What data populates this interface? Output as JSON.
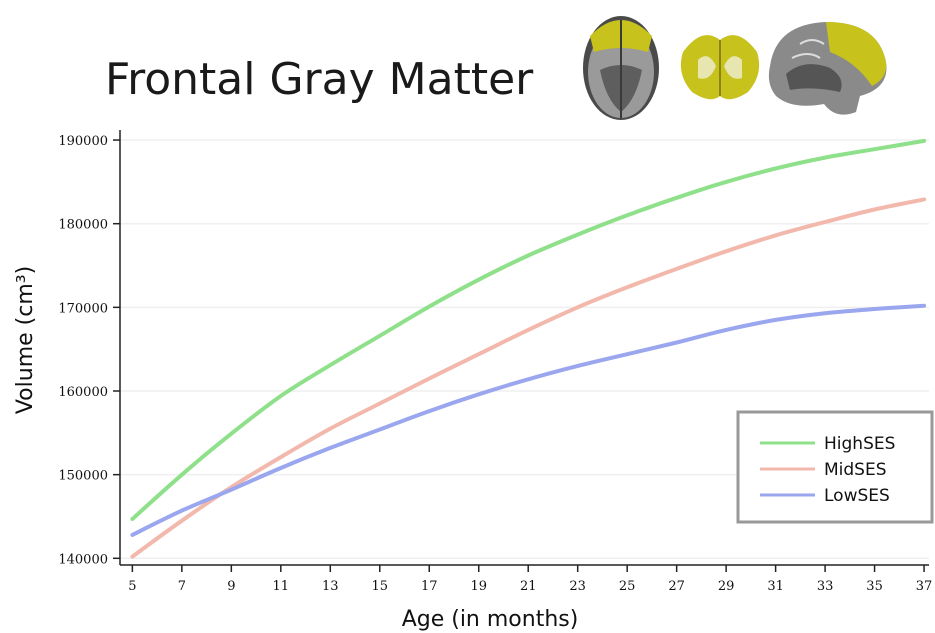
{
  "chart_data": {
    "type": "line",
    "title": "Frontal Gray Matter",
    "xlabel": "Age (in months)",
    "ylabel": "Volume (cm³)",
    "x_ticks": [
      5,
      7,
      9,
      11,
      13,
      15,
      17,
      19,
      21,
      23,
      25,
      27,
      29,
      31,
      33,
      35,
      37
    ],
    "y_ticks": [
      140000,
      150000,
      160000,
      170000,
      180000,
      190000
    ],
    "xlim": [
      4.5,
      37.2
    ],
    "ylim": [
      139200,
      191200
    ],
    "grid": "horizontal",
    "legend_position": "bottom-right",
    "series": [
      {
        "name": "HighSES",
        "color": "#8fe08a",
        "x": [
          5,
          7,
          9,
          11,
          13,
          15,
          17,
          19,
          21,
          23,
          25,
          27,
          29,
          31,
          33,
          35,
          37
        ],
        "y": [
          144700,
          150000,
          154900,
          159400,
          163100,
          166600,
          170100,
          173300,
          176200,
          178700,
          181000,
          183100,
          185000,
          186600,
          187900,
          188900,
          189900
        ]
      },
      {
        "name": "MidSES",
        "color": "#f2b8ac",
        "x": [
          5,
          7,
          9,
          11,
          13,
          15,
          17,
          19,
          21,
          23,
          25,
          27,
          29,
          31,
          33,
          35,
          37
        ],
        "y": [
          140200,
          144500,
          148500,
          152100,
          155500,
          158500,
          161500,
          164400,
          167300,
          170000,
          172400,
          174600,
          176700,
          178600,
          180200,
          181700,
          182900
        ]
      },
      {
        "name": "LowSES",
        "color": "#9aa6ee",
        "x": [
          5,
          7,
          9,
          11,
          13,
          15,
          17,
          19,
          21,
          23,
          25,
          27,
          29,
          31,
          33,
          35,
          37
        ],
        "y": [
          142800,
          145700,
          148200,
          150800,
          153200,
          155400,
          157600,
          159600,
          161400,
          163000,
          164400,
          165800,
          167300,
          168500,
          169300,
          169800,
          170200
        ]
      }
    ]
  },
  "brain_icons": [
    "axial-brain-icon",
    "coronal-brain-icon",
    "sagittal-brain-icon"
  ]
}
